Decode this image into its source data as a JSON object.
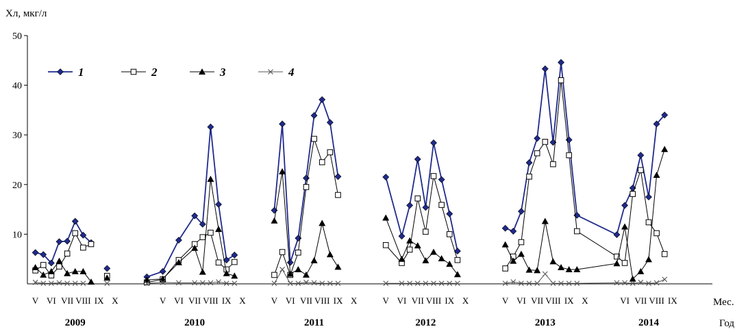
{
  "chart_data": {
    "type": "line",
    "ylabel": "Хл, мкг/л",
    "xlabel_months": "Мес.",
    "xlabel_years": "Год",
    "ylim": [
      0,
      50
    ],
    "yticks": [
      10,
      20,
      30,
      40,
      50
    ],
    "grid": false,
    "legend_position": "top-left",
    "x": [
      1,
      1.5,
      2,
      2.5,
      3,
      3.5,
      4,
      4.5,
      5,
      5.5,
      6,
      8,
      9,
      10,
      11,
      11.5,
      12,
      12.5,
      13,
      13.5,
      14,
      16,
      16.5,
      17,
      17.5,
      18,
      18.5,
      19,
      19.5,
      20,
      21,
      23,
      24,
      24.5,
      25,
      25.5,
      26,
      26.5,
      27,
      27.5,
      28,
      30.5,
      31,
      31.5,
      32,
      32.5,
      33,
      33.5,
      34,
      34.5,
      35,
      37.5,
      38,
      38.5,
      39,
      39.5,
      40,
      40.5,
      41,
      42
    ],
    "series": [
      {
        "name": "1",
        "color": "#1f2a8c",
        "marker": "diamond",
        "values": [
          6.3,
          5.9,
          4.2,
          8.5,
          8.6,
          12.6,
          9.8,
          8.3,
          null,
          3.1,
          null,
          1.4,
          2.5,
          8.8,
          13.7,
          12.0,
          31.6,
          16.0,
          4.8,
          5.8,
          null,
          14.8,
          32.2,
          4.3,
          9.2,
          21.3,
          33.9,
          37.1,
          32.5,
          21.6,
          null,
          21.5,
          9.6,
          15.8,
          25.1,
          15.4,
          28.4,
          21.0,
          14.1,
          6.6,
          null,
          11.2,
          10.6,
          14.6,
          24.4,
          29.3,
          43.3,
          28.5,
          44.6,
          29.0,
          13.8,
          9.9,
          15.8,
          19.3,
          25.9,
          17.5,
          32.2,
          34.0,
          null,
          null
        ]
      },
      {
        "name": "2",
        "color": "#000000",
        "marker": "open-square",
        "values": [
          2.7,
          3.8,
          1.7,
          3.5,
          6.1,
          10.2,
          7.3,
          8.0,
          null,
          1.6,
          null,
          0.3,
          0.9,
          4.8,
          8.0,
          9.4,
          10.3,
          4.3,
          2.9,
          4.4,
          null,
          1.8,
          6.4,
          1.8,
          6.3,
          19.5,
          29.2,
          24.5,
          26.5,
          17.9,
          null,
          7.8,
          4.2,
          6.9,
          17.2,
          10.5,
          21.7,
          15.9,
          10.0,
          4.8,
          null,
          3.1,
          5.5,
          8.4,
          21.6,
          26.3,
          28.6,
          24.1,
          41.0,
          25.9,
          10.6,
          5.5,
          4.2,
          18.1,
          22.9,
          12.4,
          10.2,
          6.0,
          null,
          null
        ]
      },
      {
        "name": "3",
        "color": "#000000",
        "marker": "filled-triangle",
        "values": [
          3.3,
          1.8,
          2.5,
          4.6,
          2.1,
          2.5,
          2.5,
          0.4,
          null,
          1.2,
          null,
          0.8,
          1.0,
          4.3,
          7.2,
          2.4,
          21.1,
          11.0,
          2.1,
          1.6,
          null,
          12.7,
          22.6,
          2.0,
          2.9,
          1.8,
          4.7,
          12.2,
          5.9,
          3.4,
          null,
          13.3,
          5.0,
          8.7,
          7.7,
          4.7,
          6.4,
          5.1,
          4.0,
          1.9,
          null,
          7.9,
          4.6,
          6.0,
          2.8,
          2.7,
          12.6,
          4.5,
          3.3,
          2.9,
          2.9,
          4.1,
          11.5,
          1.0,
          2.5,
          4.9,
          21.9,
          27.1,
          null,
          null
        ]
      },
      {
        "name": "4",
        "color": "#555555",
        "marker": "x",
        "values": [
          0.3,
          0.1,
          0.1,
          0.2,
          0.1,
          0.1,
          0.1,
          null,
          null,
          0.1,
          null,
          0.1,
          0.3,
          0.2,
          0.2,
          0.2,
          0.2,
          0.4,
          0.1,
          0.1,
          null,
          0.1,
          2.9,
          0.1,
          0.1,
          0.3,
          0.2,
          0.1,
          0.1,
          0.1,
          null,
          0.1,
          0.1,
          0.1,
          0.1,
          0.1,
          0.1,
          0.1,
          0.1,
          0.1,
          null,
          0.1,
          0.4,
          0.1,
          0.1,
          0.1,
          2.0,
          0.1,
          0.1,
          0.1,
          0.1,
          0.2,
          0.2,
          0.1,
          0.3,
          0.1,
          0.2,
          0.9,
          null,
          null
        ]
      }
    ],
    "month_labels": [
      {
        "x": 1,
        "label": "V"
      },
      {
        "x": 2,
        "label": "VI"
      },
      {
        "x": 3,
        "label": "VII"
      },
      {
        "x": 4,
        "label": "VIII"
      },
      {
        "x": 5,
        "label": "IX"
      },
      {
        "x": 6,
        "label": "X"
      },
      {
        "x": 9,
        "label": "V"
      },
      {
        "x": 10,
        "label": "VI"
      },
      {
        "x": 11,
        "label": "VII"
      },
      {
        "x": 12,
        "label": "VIII"
      },
      {
        "x": 13,
        "label": "IX"
      },
      {
        "x": 14,
        "label": "X"
      },
      {
        "x": 16,
        "label": "V"
      },
      {
        "x": 17,
        "label": "VI"
      },
      {
        "x": 18,
        "label": "VII"
      },
      {
        "x": 19,
        "label": "VIII"
      },
      {
        "x": 20,
        "label": "IX"
      },
      {
        "x": 21,
        "label": "X"
      },
      {
        "x": 23,
        "label": "V"
      },
      {
        "x": 24,
        "label": "VI"
      },
      {
        "x": 25,
        "label": "VII"
      },
      {
        "x": 26,
        "label": "VIII"
      },
      {
        "x": 27,
        "label": "IX"
      },
      {
        "x": 28,
        "label": "X"
      },
      {
        "x": 30.5,
        "label": "V"
      },
      {
        "x": 31.5,
        "label": "VI"
      },
      {
        "x": 32.5,
        "label": "VII"
      },
      {
        "x": 33.5,
        "label": "VIII"
      },
      {
        "x": 34.5,
        "label": "IX"
      },
      {
        "x": 35.5,
        "label": "X"
      },
      {
        "x": 38,
        "label": "VI"
      },
      {
        "x": 39,
        "label": "VII"
      },
      {
        "x": 40,
        "label": "VIII"
      },
      {
        "x": 41,
        "label": "IX"
      }
    ],
    "year_labels": [
      {
        "x": 3.5,
        "label": "2009"
      },
      {
        "x": 11,
        "label": "2010"
      },
      {
        "x": 18.5,
        "label": "2011"
      },
      {
        "x": 25.5,
        "label": "2012"
      },
      {
        "x": 33,
        "label": "2013"
      },
      {
        "x": 39.5,
        "label": "2014"
      }
    ]
  }
}
